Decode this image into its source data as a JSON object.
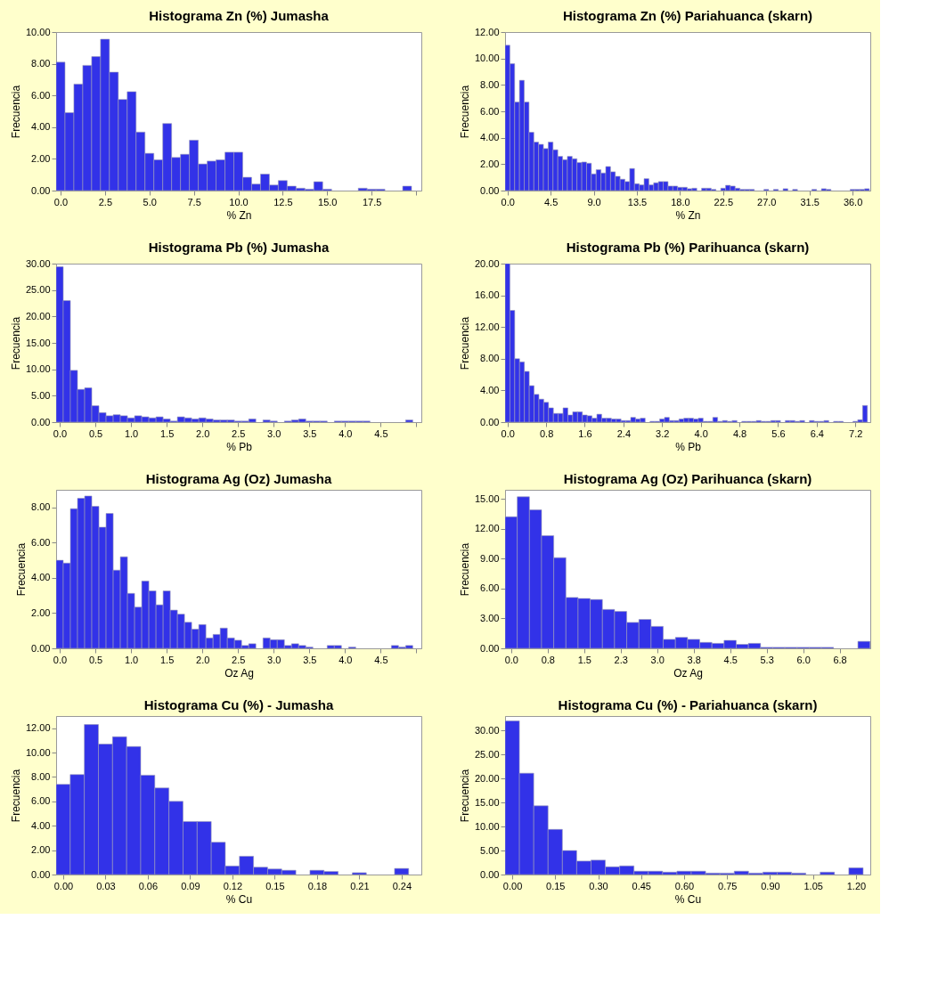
{
  "chart_data": [
    {
      "type": "histogram",
      "title": "Histograma Zn (%) Jumasha",
      "xlabel": "% Zn",
      "ylabel": "Frecuencia",
      "color": "#3232e8",
      "bins": [
        -0.25,
        0.25,
        0.75,
        1.25,
        1.75,
        2.25,
        2.75,
        3.25,
        3.75,
        4.25,
        4.75,
        5.25,
        5.75,
        6.25,
        6.75,
        7.25,
        7.75,
        8.25,
        8.75,
        9.25,
        9.75,
        10.25,
        10.75,
        11.25,
        11.75,
        12.25,
        12.75,
        13.25,
        13.75,
        14.25,
        14.75,
        15.25,
        15.75,
        16.25,
        16.75,
        17.25,
        17.75,
        18.25,
        18.75,
        19.25,
        19.75
      ],
      "values": [
        8.1,
        4.92,
        6.72,
        7.9,
        8.45,
        9.55,
        7.47,
        5.75,
        6.24,
        3.69,
        2.35,
        1.94,
        4.23,
        2.09,
        2.29,
        3.18,
        1.68,
        1.86,
        1.94,
        2.42,
        2.42,
        0.84,
        0.41,
        1.04,
        0.35,
        0.63,
        0.28,
        0.15,
        0.09,
        0.56,
        0.09,
        0,
        0,
        0,
        0.15,
        0.09,
        0.09,
        0,
        0,
        0.28
      ],
      "xlim": [
        -0.25,
        20.3
      ],
      "ylim": [
        0,
        10
      ],
      "xticks": [
        {
          "value": 0,
          "label": "0.0"
        },
        {
          "value": 2.5,
          "label": "2.5"
        },
        {
          "value": 5,
          "label": "5.0"
        },
        {
          "value": 7.5,
          "label": "7.5"
        },
        {
          "value": 10,
          "label": "10.0"
        },
        {
          "value": 12.5,
          "label": "12.5"
        },
        {
          "value": 15,
          "label": "15.0"
        },
        {
          "value": 17.5,
          "label": "17.5"
        },
        {
          "value": 20,
          "label": null
        }
      ],
      "yticks": [
        {
          "value": 0,
          "label": "0.00"
        },
        {
          "value": 2,
          "label": "2.00"
        },
        {
          "value": 4,
          "label": "4.00"
        },
        {
          "value": 6,
          "label": "6.00"
        },
        {
          "value": 8,
          "label": "8.00"
        },
        {
          "value": 10,
          "label": "10.00"
        }
      ]
    },
    {
      "type": "histogram",
      "title": "Histograma Zn (%) Pariahuanca (skarn)",
      "xlabel": "% Zn",
      "ylabel": "Frecuencia",
      "color": "#3232e8",
      "bins": [
        -0.25,
        0.25,
        0.75,
        1.25,
        1.75,
        2.25,
        2.75,
        3.25,
        3.75,
        4.25,
        4.75,
        5.25,
        5.75,
        6.25,
        6.75,
        7.25,
        7.75,
        8.25,
        8.75,
        9.25,
        9.75,
        10.25,
        10.75,
        11.25,
        11.75,
        12.25,
        12.75,
        13.25,
        13.75,
        14.25,
        14.75,
        15.25,
        15.75,
        16.25,
        16.75,
        17.25,
        17.75,
        18.25,
        18.75,
        19.25,
        19.75,
        20.25,
        20.75,
        21.25,
        21.75,
        22.25,
        22.75,
        23.25,
        23.75,
        24.25,
        24.75,
        25.25,
        25.75,
        26.25,
        26.75,
        27.25,
        27.75,
        28.25,
        28.75,
        29.25,
        29.75,
        30.25,
        30.75,
        31.25,
        31.75,
        32.25,
        32.75,
        33.25,
        33.75,
        34.25,
        34.75,
        35.25,
        35.75,
        36.25,
        36.75,
        37.25,
        37.75
      ],
      "values": [
        11.0,
        9.6,
        6.7,
        8.35,
        6.7,
        4.41,
        3.67,
        3.5,
        3.18,
        3.67,
        3.09,
        2.59,
        2.34,
        2.59,
        2.41,
        2.12,
        2.16,
        2.07,
        1.26,
        1.58,
        1.33,
        1.82,
        1.42,
        1.08,
        0.86,
        0.68,
        1.67,
        0.52,
        0.43,
        0.9,
        0.43,
        0.59,
        0.68,
        0.68,
        0.34,
        0.34,
        0.25,
        0.25,
        0.14,
        0.18,
        0,
        0.18,
        0.18,
        0.09,
        0,
        0.18,
        0.4,
        0.34,
        0.18,
        0.09,
        0.09,
        0.09,
        0,
        0,
        0.09,
        0,
        0.09,
        0,
        0.14,
        0,
        0.09,
        0,
        0,
        0,
        0.09,
        0,
        0.14,
        0.09,
        0,
        0,
        0,
        0,
        0.09,
        0.09,
        0.09,
        0.14
      ],
      "xlim": [
        -0.25,
        37.85
      ],
      "ylim": [
        0,
        12
      ],
      "xticks": [
        {
          "value": 0,
          "label": "0.0"
        },
        {
          "value": 4.5,
          "label": "4.5"
        },
        {
          "value": 9,
          "label": "9.0"
        },
        {
          "value": 13.5,
          "label": "13.5"
        },
        {
          "value": 18,
          "label": "18.0"
        },
        {
          "value": 22.5,
          "label": "22.5"
        },
        {
          "value": 27,
          "label": "27.0"
        },
        {
          "value": 31.5,
          "label": "31.5"
        },
        {
          "value": 36,
          "label": "36.0"
        }
      ],
      "yticks": [
        {
          "value": 0,
          "label": "0.00"
        },
        {
          "value": 2,
          "label": "2.00"
        },
        {
          "value": 4,
          "label": "4.00"
        },
        {
          "value": 6,
          "label": "6.00"
        },
        {
          "value": 8,
          "label": "8.00"
        },
        {
          "value": 10,
          "label": "10.00"
        },
        {
          "value": 12,
          "label": "12.00"
        }
      ]
    },
    {
      "type": "histogram",
      "title": "Histograma Pb (%) Jumasha",
      "xlabel": "% Pb",
      "ylabel": "Frecuencia",
      "color": "#3232e8",
      "bins": [
        -0.05,
        0.05,
        0.15,
        0.25,
        0.35,
        0.45,
        0.55,
        0.65,
        0.75,
        0.85,
        0.95,
        1.05,
        1.15,
        1.25,
        1.35,
        1.45,
        1.55,
        1.65,
        1.75,
        1.85,
        1.95,
        2.05,
        2.15,
        2.25,
        2.35,
        2.45,
        2.55,
        2.65,
        2.75,
        2.85,
        2.95,
        3.05,
        3.15,
        3.25,
        3.35,
        3.45,
        3.55,
        3.65,
        3.75,
        3.85,
        3.95,
        4.05,
        4.15,
        4.25,
        4.35,
        4.45,
        4.55,
        4.65,
        4.75,
        4.85,
        4.95
      ],
      "values": [
        29.4,
        23.0,
        9.8,
        6.2,
        6.5,
        3.1,
        1.8,
        1.2,
        1.4,
        1.2,
        0.8,
        1.2,
        1.0,
        0.8,
        1.0,
        0.6,
        0.2,
        1.0,
        0.8,
        0.6,
        0.8,
        0.6,
        0.4,
        0.4,
        0.4,
        0.2,
        0.2,
        0.6,
        0,
        0.4,
        0.2,
        0,
        0.2,
        0.4,
        0.6,
        0.2,
        0.2,
        0.2,
        0,
        0.2,
        0.2,
        0.2,
        0.2,
        0.2,
        0,
        0,
        0,
        0,
        0,
        0.4
      ],
      "xlim": [
        -0.05,
        5.07
      ],
      "ylim": [
        0,
        30
      ],
      "xticks": [
        {
          "value": 0,
          "label": "0.0"
        },
        {
          "value": 0.5,
          "label": "0.5"
        },
        {
          "value": 1,
          "label": "1.0"
        },
        {
          "value": 1.5,
          "label": "1.5"
        },
        {
          "value": 2,
          "label": "2.0"
        },
        {
          "value": 2.5,
          "label": "2.5"
        },
        {
          "value": 3,
          "label": "3.0"
        },
        {
          "value": 3.5,
          "label": "3.5"
        },
        {
          "value": 4,
          "label": "4.0"
        },
        {
          "value": 4.5,
          "label": "4.5"
        },
        {
          "value": 5,
          "label": null
        }
      ],
      "yticks": [
        {
          "value": 0,
          "label": "0.00"
        },
        {
          "value": 5,
          "label": "5.00"
        },
        {
          "value": 10,
          "label": "10.00"
        },
        {
          "value": 15,
          "label": "15.00"
        },
        {
          "value": 20,
          "label": "20.00"
        },
        {
          "value": 25,
          "label": "25.00"
        },
        {
          "value": 30,
          "label": "30.00"
        }
      ]
    },
    {
      "type": "histogram",
      "title": "Histograma Pb (%) Parihuanca (skarn)",
      "xlabel": "% Pb",
      "ylabel": "Frecuencia",
      "color": "#3232e8",
      "bins": [
        -0.05,
        0.05,
        0.15,
        0.25,
        0.35,
        0.45,
        0.55,
        0.65,
        0.75,
        0.85,
        0.95,
        1.05,
        1.15,
        1.25,
        1.35,
        1.45,
        1.55,
        1.65,
        1.75,
        1.85,
        1.95,
        2.05,
        2.15,
        2.25,
        2.35,
        2.45,
        2.55,
        2.65,
        2.75,
        2.85,
        2.95,
        3.05,
        3.15,
        3.25,
        3.35,
        3.45,
        3.55,
        3.65,
        3.75,
        3.85,
        3.95,
        4.05,
        4.15,
        4.25,
        4.35,
        4.45,
        4.55,
        4.65,
        4.75,
        4.85,
        4.95,
        5.05,
        5.15,
        5.25,
        5.35,
        5.45,
        5.55,
        5.65,
        5.75,
        5.85,
        5.95,
        6.05,
        6.15,
        6.25,
        6.35,
        6.45,
        6.55,
        6.65,
        6.75,
        6.85,
        6.95,
        7.05,
        7.15,
        7.25,
        7.35,
        7.45
      ],
      "values": [
        20.0,
        14.1,
        8.0,
        7.6,
        6.4,
        4.6,
        3.5,
        2.9,
        2.5,
        1.8,
        1.1,
        1.1,
        1.8,
        0.9,
        1.3,
        1.3,
        0.9,
        0.8,
        0.5,
        1.0,
        0.5,
        0.5,
        0.4,
        0.4,
        0.2,
        0.2,
        0.6,
        0.4,
        0.5,
        0,
        0.1,
        0.1,
        0.4,
        0.6,
        0.2,
        0.2,
        0.4,
        0.5,
        0.5,
        0.4,
        0.5,
        0.1,
        0.1,
        0.6,
        0.1,
        0.2,
        0.1,
        0.2,
        0,
        0.1,
        0.1,
        0.1,
        0.2,
        0.1,
        0.1,
        0.2,
        0.2,
        0,
        0.2,
        0.2,
        0.1,
        0.2,
        0,
        0.2,
        0.1,
        0.1,
        0.2,
        0,
        0.1,
        0.1,
        0,
        0,
        0.1,
        0.3,
        2.1
      ],
      "xlim": [
        -0.05,
        7.51
      ],
      "ylim": [
        0,
        20
      ],
      "xticks": [
        {
          "value": 0,
          "label": "0.0"
        },
        {
          "value": 0.8,
          "label": "0.8"
        },
        {
          "value": 1.6,
          "label": "1.6"
        },
        {
          "value": 2.4,
          "label": "2.4"
        },
        {
          "value": 3.2,
          "label": "3.2"
        },
        {
          "value": 4,
          "label": "4.0"
        },
        {
          "value": 4.8,
          "label": "4.8"
        },
        {
          "value": 5.6,
          "label": "5.6"
        },
        {
          "value": 6.4,
          "label": "6.4"
        },
        {
          "value": 7.2,
          "label": "7.2"
        }
      ],
      "yticks": [
        {
          "value": 0,
          "label": "0.00"
        },
        {
          "value": 4,
          "label": "4.00"
        },
        {
          "value": 8,
          "label": "8.00"
        },
        {
          "value": 12,
          "label": "12.00"
        },
        {
          "value": 16,
          "label": "16.00"
        },
        {
          "value": 20,
          "label": "20.00"
        }
      ]
    },
    {
      "type": "histogram",
      "title": "Histograma Ag (Oz) Jumasha",
      "xlabel": "Oz Ag",
      "ylabel": "Frecuencia",
      "color": "#3232e8",
      "bins": [
        -0.05,
        0.05,
        0.15,
        0.25,
        0.35,
        0.45,
        0.55,
        0.65,
        0.75,
        0.85,
        0.95,
        1.05,
        1.15,
        1.25,
        1.35,
        1.45,
        1.55,
        1.65,
        1.75,
        1.85,
        1.95,
        2.05,
        2.15,
        2.25,
        2.35,
        2.45,
        2.55,
        2.65,
        2.75,
        2.85,
        2.95,
        3.05,
        3.15,
        3.25,
        3.35,
        3.45,
        3.55,
        3.65,
        3.75,
        3.85,
        3.95,
        4.05,
        4.15,
        4.25,
        4.35,
        4.45,
        4.55,
        4.65,
        4.75,
        4.85,
        4.95
      ],
      "values": [
        5.0,
        4.84,
        7.93,
        8.52,
        8.65,
        8.06,
        6.88,
        7.66,
        4.44,
        5.2,
        3.12,
        2.34,
        3.82,
        3.26,
        2.47,
        3.26,
        2.17,
        1.94,
        1.48,
        1.09,
        1.35,
        0.59,
        0.79,
        1.15,
        0.59,
        0.46,
        0.16,
        0.26,
        0,
        0.59,
        0.49,
        0.49,
        0.16,
        0.26,
        0.16,
        0.07,
        0,
        0,
        0.16,
        0.16,
        0,
        0.07,
        0,
        0,
        0,
        0,
        0,
        0.16,
        0.07,
        0.16
      ],
      "xlim": [
        -0.05,
        5.07
      ],
      "ylim": [
        0,
        9
      ],
      "xticks": [
        {
          "value": 0,
          "label": "0.0"
        },
        {
          "value": 0.5,
          "label": "0.5"
        },
        {
          "value": 1,
          "label": "1.0"
        },
        {
          "value": 1.5,
          "label": "1.5"
        },
        {
          "value": 2,
          "label": "2.0"
        },
        {
          "value": 2.5,
          "label": "2.5"
        },
        {
          "value": 3,
          "label": "3.0"
        },
        {
          "value": 3.5,
          "label": "3.5"
        },
        {
          "value": 4,
          "label": "4.0"
        },
        {
          "value": 4.5,
          "label": "4.5"
        },
        {
          "value": 5,
          "label": null
        }
      ],
      "yticks": [
        {
          "value": 0,
          "label": "0.00"
        },
        {
          "value": 2,
          "label": "2.00"
        },
        {
          "value": 4,
          "label": "4.00"
        },
        {
          "value": 6,
          "label": "6.00"
        },
        {
          "value": 8,
          "label": "8.00"
        }
      ]
    },
    {
      "type": "histogram",
      "title": "Histograma Ag (Oz) Parihuanca (skarn)",
      "xlabel": "Oz Ag",
      "ylabel": "Frecuencia",
      "color": "#3232e8",
      "bins": [
        -0.125,
        0.125,
        0.375,
        0.625,
        0.875,
        1.125,
        1.375,
        1.625,
        1.875,
        2.125,
        2.375,
        2.625,
        2.875,
        3.125,
        3.375,
        3.625,
        3.875,
        4.125,
        4.375,
        4.625,
        4.875,
        5.125,
        5.375,
        5.625,
        5.875,
        6.125,
        6.375,
        6.625,
        6.875,
        7.125,
        7.375
      ],
      "values": [
        13.2,
        15.2,
        13.9,
        11.3,
        9.1,
        5.1,
        5.0,
        4.9,
        3.9,
        3.7,
        2.6,
        2.9,
        2.2,
        0.9,
        1.1,
        0.9,
        0.6,
        0.5,
        0.8,
        0.4,
        0.5,
        0.1,
        0.1,
        0.1,
        0.1,
        0.1,
        0.1,
        0,
        0,
        0.7
      ],
      "xlim": [
        -0.125,
        7.38
      ],
      "ylim": [
        0,
        15.9
      ],
      "xticks": [
        {
          "value": 0,
          "label": "0.0"
        },
        {
          "value": 0.75,
          "label": "0.8"
        },
        {
          "value": 1.5,
          "label": "1.5"
        },
        {
          "value": 2.25,
          "label": "2.3"
        },
        {
          "value": 3,
          "label": "3.0"
        },
        {
          "value": 3.75,
          "label": "3.8"
        },
        {
          "value": 4.5,
          "label": "4.5"
        },
        {
          "value": 5.25,
          "label": "5.3"
        },
        {
          "value": 6,
          "label": "6.0"
        },
        {
          "value": 6.75,
          "label": "6.8"
        }
      ],
      "yticks": [
        {
          "value": 0,
          "label": "0.00"
        },
        {
          "value": 3,
          "label": "3.00"
        },
        {
          "value": 6,
          "label": "6.00"
        },
        {
          "value": 9,
          "label": "9.00"
        },
        {
          "value": 12,
          "label": "12.00"
        },
        {
          "value": 15,
          "label": "15.00"
        }
      ]
    },
    {
      "type": "histogram",
      "title": "Histograma Cu (%) - Jumasha",
      "xlabel": "% Cu",
      "ylabel": "Frecuencia",
      "color": "#3232e8",
      "bins": [
        -0.005,
        0.005,
        0.015,
        0.025,
        0.035,
        0.045,
        0.055,
        0.065,
        0.075,
        0.085,
        0.095,
        0.105,
        0.115,
        0.125,
        0.135,
        0.145,
        0.155,
        0.165,
        0.175,
        0.185,
        0.195,
        0.205,
        0.215,
        0.225,
        0.235,
        0.245
      ],
      "values": [
        7.4,
        8.2,
        12.3,
        10.7,
        11.3,
        10.5,
        8.15,
        7.1,
        6.0,
        4.35,
        4.35,
        2.65,
        0.7,
        1.5,
        0.6,
        0.45,
        0.35,
        0,
        0.35,
        0.25,
        0,
        0.15,
        0,
        0,
        0.5
      ],
      "xlim": [
        -0.005,
        0.254
      ],
      "ylim": [
        0,
        13
      ],
      "xticks": [
        {
          "value": 0,
          "label": "0.00"
        },
        {
          "value": 0.03,
          "label": "0.03"
        },
        {
          "value": 0.06,
          "label": "0.06"
        },
        {
          "value": 0.09,
          "label": "0.09"
        },
        {
          "value": 0.12,
          "label": "0.12"
        },
        {
          "value": 0.15,
          "label": "0.15"
        },
        {
          "value": 0.18,
          "label": "0.18"
        },
        {
          "value": 0.21,
          "label": "0.21"
        },
        {
          "value": 0.24,
          "label": "0.24"
        }
      ],
      "yticks": [
        {
          "value": 0,
          "label": "0.00"
        },
        {
          "value": 2,
          "label": "2.00"
        },
        {
          "value": 4,
          "label": "4.00"
        },
        {
          "value": 6,
          "label": "6.00"
        },
        {
          "value": 8,
          "label": "8.00"
        },
        {
          "value": 10,
          "label": "10.00"
        },
        {
          "value": 12,
          "label": "12.00"
        }
      ]
    },
    {
      "type": "histogram",
      "title": "Histograma Cu (%) - Pariahuanca (skarn)",
      "xlabel": "% Cu",
      "ylabel": "Frecuencia",
      "color": "#3232e8",
      "bins": [
        -0.025,
        0.025,
        0.075,
        0.125,
        0.175,
        0.225,
        0.275,
        0.325,
        0.375,
        0.425,
        0.475,
        0.525,
        0.575,
        0.625,
        0.675,
        0.725,
        0.775,
        0.825,
        0.875,
        0.925,
        0.975,
        1.025,
        1.075,
        1.125,
        1.175,
        1.225
      ],
      "values": [
        32.0,
        21.1,
        14.3,
        9.4,
        5.0,
        2.8,
        3.0,
        1.6,
        1.8,
        0.7,
        0.7,
        0.5,
        0.7,
        0.7,
        0.3,
        0.3,
        0.7,
        0.3,
        0.5,
        0.5,
        0.3,
        0,
        0.5,
        0,
        1.4
      ],
      "xlim": [
        -0.025,
        1.25
      ],
      "ylim": [
        0,
        33
      ],
      "xticks": [
        {
          "value": 0,
          "label": "0.00"
        },
        {
          "value": 0.15,
          "label": "0.15"
        },
        {
          "value": 0.3,
          "label": "0.30"
        },
        {
          "value": 0.45,
          "label": "0.45"
        },
        {
          "value": 0.6,
          "label": "0.60"
        },
        {
          "value": 0.75,
          "label": "0.75"
        },
        {
          "value": 0.9,
          "label": "0.90"
        },
        {
          "value": 1.05,
          "label": "1.05"
        },
        {
          "value": 1.2,
          "label": "1.20"
        }
      ],
      "yticks": [
        {
          "value": 0,
          "label": "0.00"
        },
        {
          "value": 5,
          "label": "5.00"
        },
        {
          "value": 10,
          "label": "10.00"
        },
        {
          "value": 15,
          "label": "15.00"
        },
        {
          "value": 20,
          "label": "20.00"
        },
        {
          "value": 25,
          "label": "25.00"
        },
        {
          "value": 30,
          "label": "30.00"
        }
      ]
    }
  ]
}
